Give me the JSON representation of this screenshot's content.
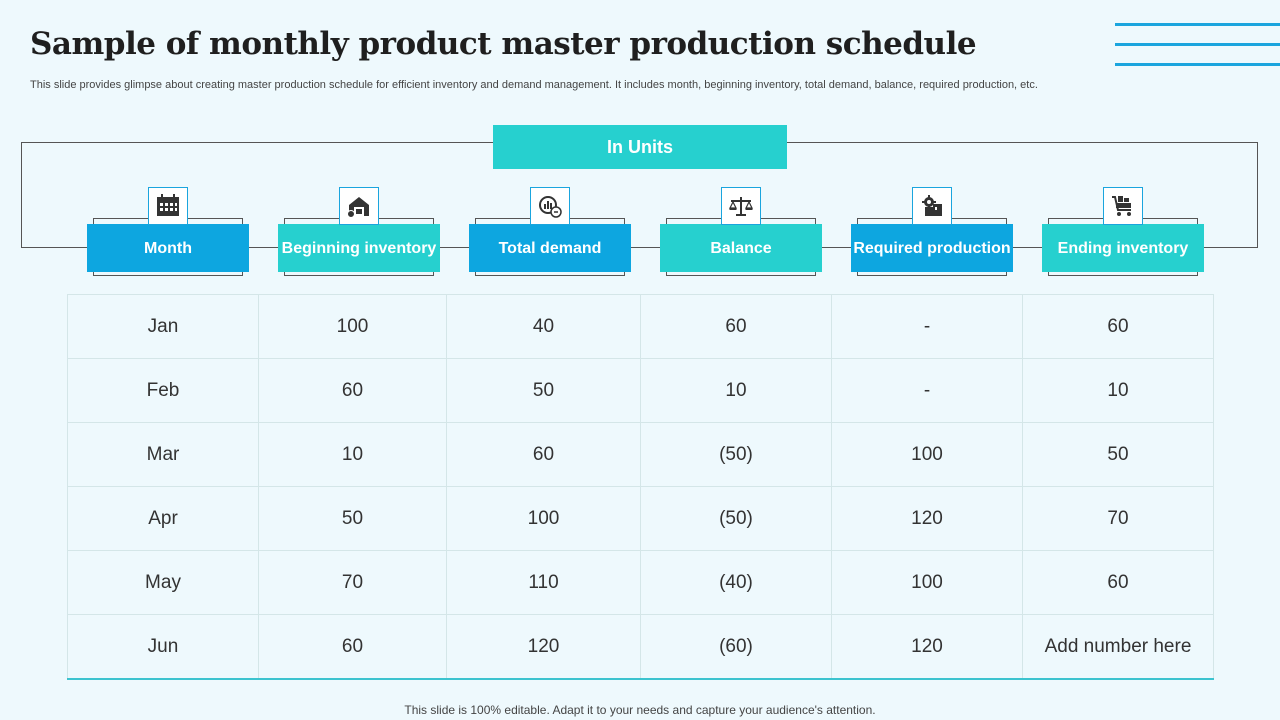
{
  "title": "Sample of monthly product master production schedule",
  "subtitle": "This slide provides glimpse about creating master production schedule for efficient inventory and demand management. It includes month, beginning inventory, total demand, balance, required production, etc.",
  "units_label": "In Units",
  "columns": [
    {
      "label": "Month",
      "icon": "calendar-icon"
    },
    {
      "label": "Beginning inventory",
      "icon": "warehouse-icon"
    },
    {
      "label": "Total demand",
      "icon": "demand-chart-icon"
    },
    {
      "label": "Balance",
      "icon": "scale-icon"
    },
    {
      "label": "Required production",
      "icon": "production-gear-icon"
    },
    {
      "label": "Ending inventory",
      "icon": "cart-icon"
    }
  ],
  "rows": [
    [
      "Jan",
      "100",
      "40",
      "60",
      "-",
      "60"
    ],
    [
      "Feb",
      "60",
      "50",
      "10",
      "-",
      "10"
    ],
    [
      "Mar",
      "10",
      "60",
      "(50)",
      "100",
      "50"
    ],
    [
      "Apr",
      "50",
      "100",
      "(50)",
      "120",
      "70"
    ],
    [
      "May",
      "70",
      "110",
      "(40)",
      "100",
      "60"
    ],
    [
      "Jun",
      "60",
      "120",
      "(60)",
      "120",
      "Add number here"
    ]
  ],
  "footer": "This slide is 100% editable. Adapt it to your needs and capture your audience's attention.",
  "colors": {
    "blue": "#0da6e0",
    "teal": "#26d0cf",
    "background": "#eef9fd"
  }
}
